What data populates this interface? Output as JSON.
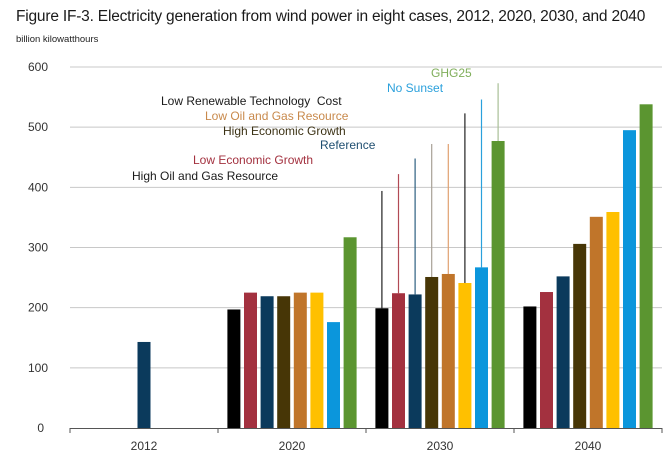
{
  "chart_data": {
    "type": "bar",
    "title": "Figure IF-3. Electricity generation from wind power in eight cases, 2012, 2020, 2030, and 2040",
    "ylabel": "billion  kilowatthours",
    "xlabel": "",
    "ylim": [
      0,
      600
    ],
    "yticks": [
      0,
      100,
      200,
      300,
      400,
      500,
      600
    ],
    "grid": true,
    "categories": [
      "2012",
      "2020",
      "2030",
      "2040"
    ],
    "history": {
      "category": "2012",
      "value": 143,
      "color": "#0b3a5c"
    },
    "series": [
      {
        "name": "High Oil and Gas Resource",
        "color": "#000000",
        "label_color": "#1a1a1a",
        "leader_color": "#222222",
        "values": [
          null,
          197,
          199,
          202
        ],
        "leader_top": 394
      },
      {
        "name": "Low Economic Growth",
        "color": "#a3313f",
        "label_color": "#a3313f",
        "leader_color": "#b24a55",
        "values": [
          null,
          225,
          224,
          226
        ],
        "leader_top": 422
      },
      {
        "name": "Reference",
        "color": "#0b3a5c",
        "label_color": "#1f4e70",
        "leader_color": "#2e5f80",
        "values": [
          null,
          219,
          222,
          252
        ],
        "leader_top": 448
      },
      {
        "name": "High Economic Growth",
        "color": "#473606",
        "label_color": "#3b3114",
        "leader_color": "#a8a095",
        "values": [
          null,
          219,
          251,
          306
        ],
        "leader_top": 472
      },
      {
        "name": "Low Oil and Gas Resource",
        "color": "#c0752a",
        "label_color": "#c8894b",
        "leader_color": "#e0a070",
        "values": [
          null,
          225,
          256,
          351
        ],
        "leader_top": 472
      },
      {
        "name": "Low Renewable Technology  Cost",
        "color": "#ffc000",
        "label_color": "#1a1a1a",
        "leader_color": "#222222",
        "values": [
          null,
          225,
          241,
          359
        ],
        "leader_top": 523
      },
      {
        "name": "No Sunset",
        "color": "#0b96dc",
        "label_color": "#2aa0dc",
        "leader_color": "#2aa0dc",
        "values": [
          null,
          176,
          267,
          495
        ],
        "leader_top": 546
      },
      {
        "name": "GHG25",
        "color": "#5b9530",
        "label_color": "#7fae5a",
        "leader_color": "#a9bf96",
        "values": [
          null,
          317,
          477,
          538
        ],
        "leader_top": 573
      }
    ],
    "annotations_category": "2030"
  }
}
